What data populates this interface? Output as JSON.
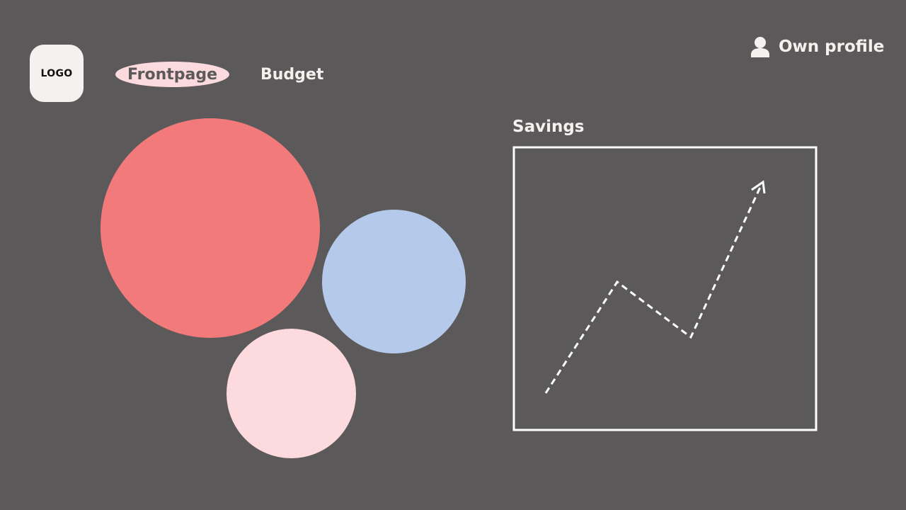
{
  "header": {
    "logo_text": "LOGO",
    "nav": {
      "frontpage_label": "Frontpage",
      "budget_label": "Budget"
    },
    "profile": {
      "icon": "user-icon",
      "label": "Own profile"
    }
  },
  "savings": {
    "title": "Savings"
  },
  "colors": {
    "background": "#5b595a",
    "text": "#f5f1ee",
    "logo_bg": "#f5f1ee",
    "active_tab_bg": "#fddadd",
    "active_tab_text": "#5b595a",
    "circle_large": "#f37a7a",
    "circle_blue": "#b5caea",
    "circle_pink": "#fddadd",
    "chart_stroke": "#ffffff"
  }
}
